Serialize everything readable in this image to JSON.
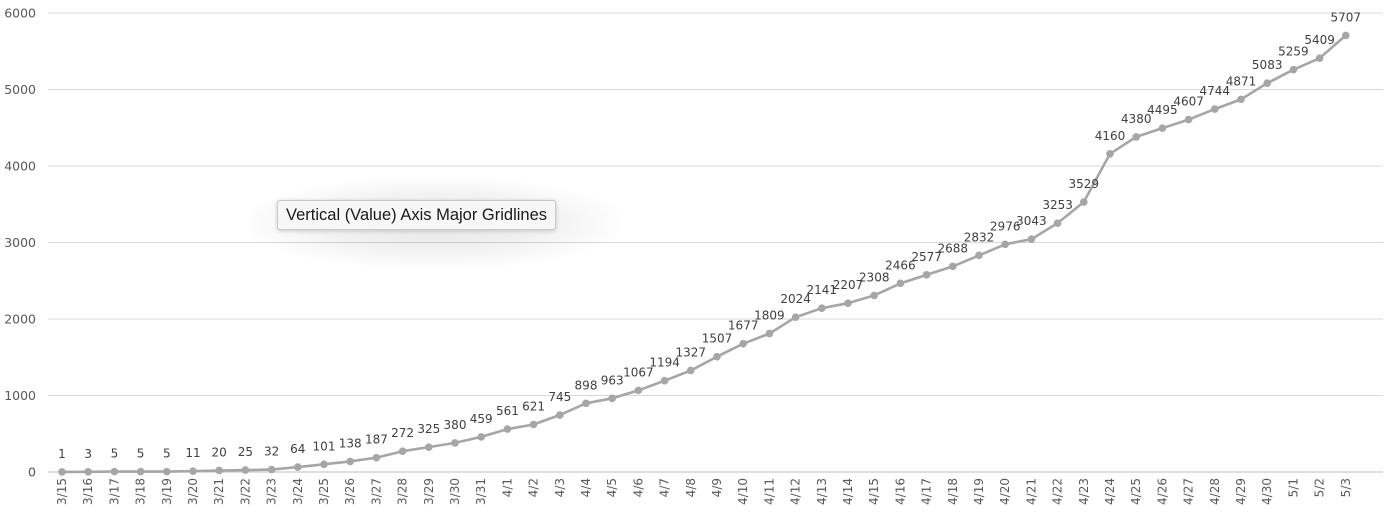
{
  "tooltip": {
    "text": "Vertical (Value) Axis Major Gridlines"
  },
  "colors": {
    "line": "#a6a6a6",
    "marker": "#a6a6a6",
    "gridline": "#d9d9d9",
    "axis_text": "#595959",
    "data_label": "#404040"
  },
  "chart_data": {
    "type": "line",
    "title": "",
    "xlabel": "",
    "ylabel": "",
    "ylim": [
      0,
      6000
    ],
    "yticks": [
      0,
      1000,
      2000,
      3000,
      4000,
      5000,
      6000
    ],
    "grid": true,
    "legend": "none",
    "markers": true,
    "data_labels": true,
    "categories": [
      "3/15",
      "3/16",
      "3/17",
      "3/18",
      "3/19",
      "3/20",
      "3/21",
      "3/22",
      "3/23",
      "3/24",
      "3/25",
      "3/26",
      "3/27",
      "3/28",
      "3/29",
      "3/30",
      "3/31",
      "4/1",
      "4/2",
      "4/3",
      "4/4",
      "4/5",
      "4/6",
      "4/7",
      "4/8",
      "4/9",
      "4/10",
      "4/11",
      "4/12",
      "4/13",
      "4/14",
      "4/15",
      "4/16",
      "4/17",
      "4/18",
      "4/19",
      "4/20",
      "4/21",
      "4/22",
      "4/23",
      "4/24",
      "4/25",
      "4/26",
      "4/27",
      "4/28",
      "4/29",
      "4/30",
      "5/1",
      "5/2",
      "5/3"
    ],
    "values": [
      1,
      3,
      5,
      5,
      5,
      11,
      20,
      25,
      32,
      64,
      101,
      138,
      187,
      272,
      325,
      380,
      459,
      561,
      621,
      745,
      898,
      963,
      1067,
      1194,
      1327,
      1507,
      1677,
      1809,
      2024,
      2141,
      2207,
      2308,
      2466,
      2577,
      2688,
      2832,
      2976,
      3043,
      3253,
      3529,
      4160,
      4380,
      4495,
      4607,
      4744,
      4871,
      5083,
      5259,
      5409,
      5707
    ]
  }
}
